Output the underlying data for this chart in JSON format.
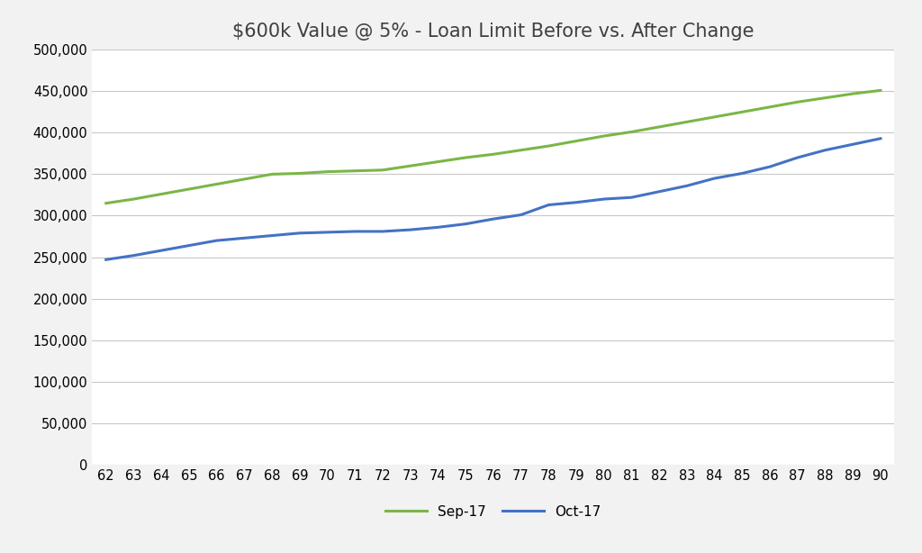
{
  "title": "$600k Value @ 5% - Loan Limit Before vs. After Change",
  "x_ages": [
    62,
    63,
    64,
    65,
    66,
    67,
    68,
    69,
    70,
    71,
    72,
    73,
    74,
    75,
    76,
    77,
    78,
    79,
    80,
    81,
    82,
    83,
    84,
    85,
    86,
    87,
    88,
    89,
    90
  ],
  "sep17": [
    315000,
    320000,
    326000,
    332000,
    338000,
    344000,
    350000,
    351000,
    353000,
    354000,
    355000,
    360000,
    365000,
    370000,
    374000,
    379000,
    384000,
    390000,
    396000,
    401000,
    407000,
    413000,
    419000,
    425000,
    431000,
    437000,
    442000,
    447000,
    451000
  ],
  "oct17": [
    247000,
    252000,
    258000,
    264000,
    270000,
    273000,
    276000,
    279000,
    280000,
    281000,
    281000,
    283000,
    286000,
    290000,
    296000,
    301000,
    313000,
    316000,
    320000,
    322000,
    329000,
    336000,
    345000,
    351000,
    359000,
    370000,
    379000,
    386000,
    393000
  ],
  "sep17_color": "#7ab648",
  "oct17_color": "#4472c4",
  "background_color": "#f2f2f2",
  "plot_bg_color": "#ffffff",
  "grid_color": "#c8c8c8",
  "ylim": [
    0,
    500000
  ],
  "ytick_step": 50000,
  "legend_labels": [
    "Sep-17",
    "Oct-17"
  ],
  "line_width": 2.2,
  "title_fontsize": 15,
  "tick_fontsize": 10.5,
  "legend_fontsize": 11
}
